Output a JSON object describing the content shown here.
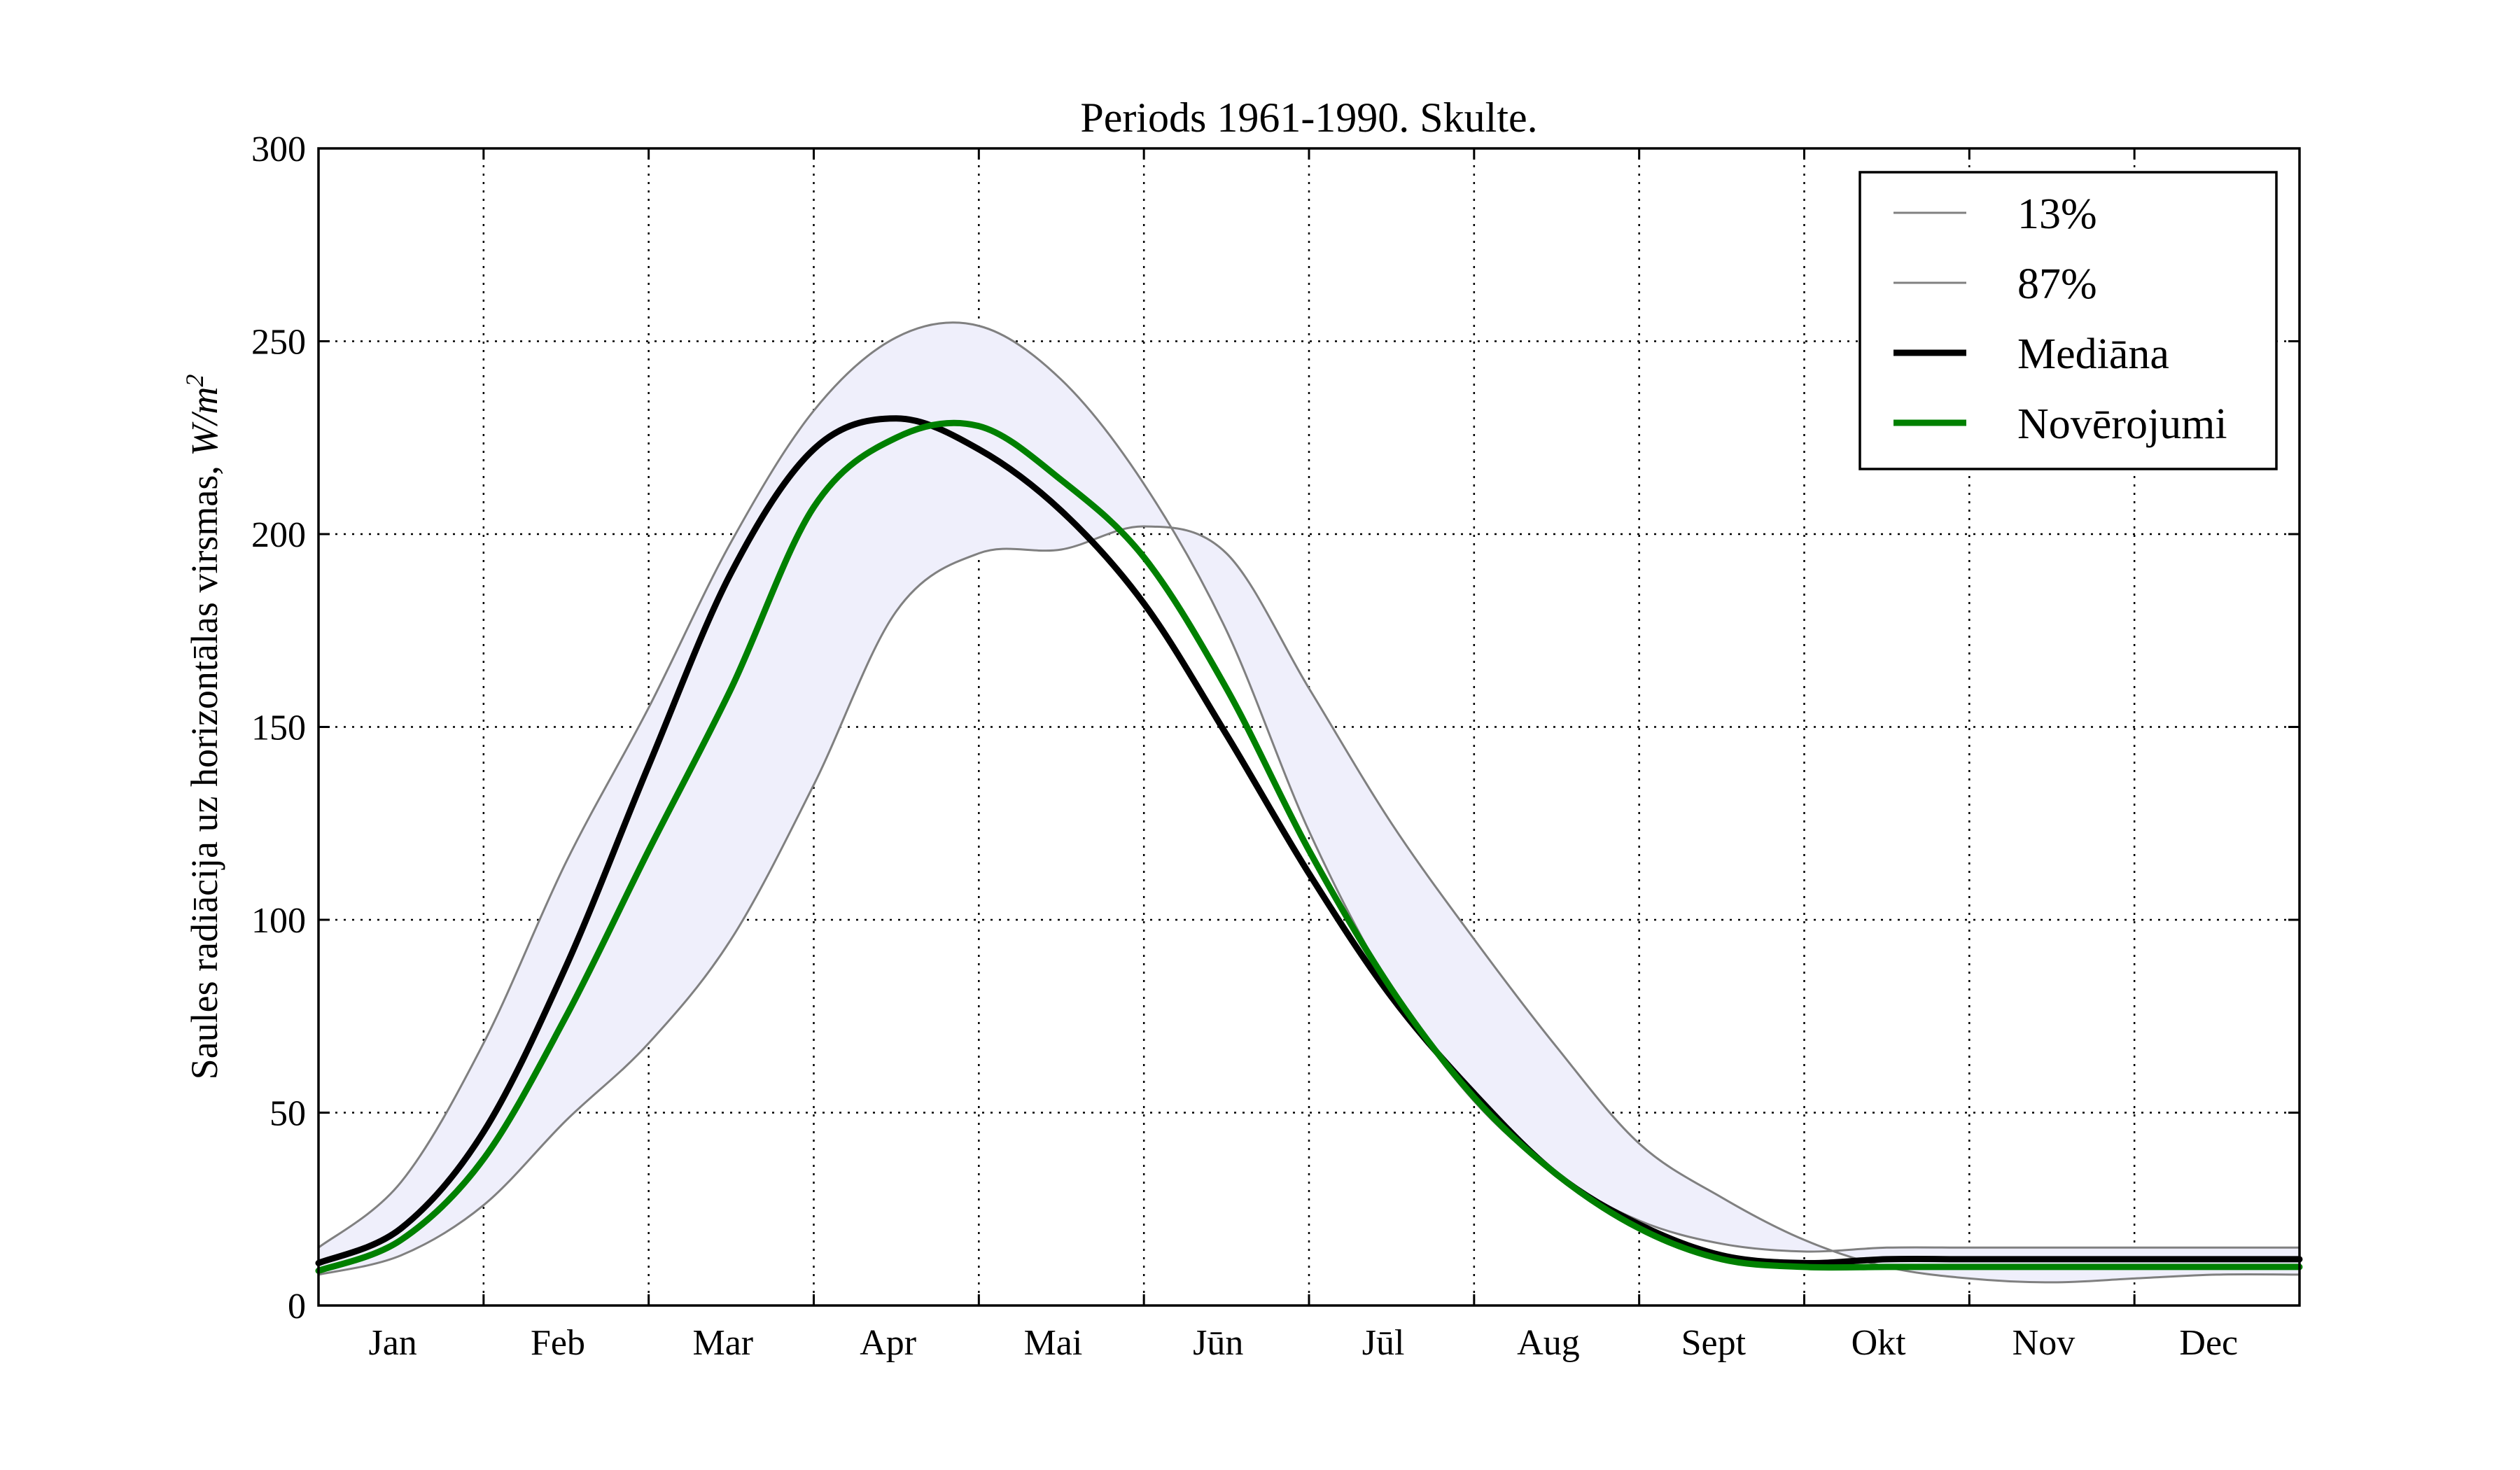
{
  "chart_data": {
    "type": "line",
    "title": "Periods 1961-1990. Skulte.",
    "ylabel": "Saules radiācija uz horizontālas virsmas, W/m²",
    "ylabel_parts": {
      "text": "Saules radiācija uz horizontālas virsmas, ",
      "unit_base": "W/m",
      "unit_exp": "2"
    },
    "xlabel": "",
    "ylim": [
      0,
      300
    ],
    "yticks": [
      0,
      50,
      100,
      150,
      200,
      250,
      300
    ],
    "xlim": [
      0,
      12
    ],
    "month_labels": [
      "Jan",
      "Feb",
      "Mar",
      "Apr",
      "Mai",
      "Jūn",
      "Jūl",
      "Aug",
      "Sept",
      "Okt",
      "Nov",
      "Dec"
    ],
    "grid": true,
    "legend_position": "top-right",
    "band_color": "#efeffb",
    "series": [
      {
        "name": "13%",
        "color": "#808080",
        "width": 3,
        "x": [
          0,
          0.5,
          1.0,
          1.5,
          2.0,
          2.5,
          3.0,
          3.5,
          4.0,
          4.5,
          5.0,
          5.5,
          6.0,
          6.5,
          7.0,
          7.5,
          8.0,
          8.5,
          9.0,
          9.5,
          10.0,
          10.5,
          11.0,
          11.5,
          12.0
        ],
        "y": [
          8,
          13,
          26,
          48,
          68,
          95,
          135,
          180,
          195,
          196,
          202,
          195,
          160,
          125,
          95,
          67,
          42,
          28,
          17,
          10,
          7,
          6,
          7,
          8,
          8
        ]
      },
      {
        "name": "87%",
        "color": "#808080",
        "width": 3,
        "x": [
          0,
          0.5,
          1.0,
          1.5,
          2.0,
          2.5,
          3.0,
          3.5,
          4.0,
          4.5,
          5.0,
          5.5,
          6.0,
          6.5,
          7.0,
          7.5,
          8.0,
          8.5,
          9.0,
          9.5,
          10.0,
          10.5,
          11.0,
          11.5,
          12.0
        ],
        "y": [
          15,
          32,
          68,
          115,
          155,
          198,
          232,
          251,
          254,
          240,
          213,
          175,
          123,
          82,
          53,
          34,
          22,
          16,
          14,
          15,
          15,
          15,
          15,
          15,
          15
        ]
      },
      {
        "name": "Mediāna",
        "color": "#000000",
        "width": 9,
        "x": [
          0,
          0.5,
          1.0,
          1.5,
          2.0,
          2.5,
          3.0,
          3.5,
          4.0,
          4.5,
          5.0,
          5.5,
          6.0,
          6.5,
          7.0,
          7.5,
          8.0,
          8.5,
          9.0,
          9.5,
          10.0,
          10.5,
          11.0,
          11.5,
          12.0
        ],
        "y": [
          11,
          20,
          45,
          88,
          140,
          190,
          222,
          230,
          222,
          206,
          182,
          148,
          112,
          80,
          55,
          34,
          21,
          13,
          11,
          12,
          12,
          12,
          12,
          12,
          12
        ]
      },
      {
        "name": "Novērojumi",
        "color": "#008000",
        "width": 9,
        "x": [
          0,
          0.5,
          1.0,
          1.5,
          2.0,
          2.5,
          3.0,
          3.5,
          4.0,
          4.5,
          5.0,
          5.5,
          6.0,
          6.5,
          7.0,
          7.5,
          8.0,
          8.5,
          9.0,
          9.5,
          10.0,
          10.5,
          11.0,
          11.5,
          12.0
        ],
        "y": [
          9,
          17,
          38,
          75,
          118,
          160,
          207,
          225,
          228,
          214,
          194,
          160,
          118,
          82,
          54,
          34,
          20,
          12,
          10,
          10,
          10,
          10,
          10,
          10,
          10
        ]
      }
    ]
  }
}
